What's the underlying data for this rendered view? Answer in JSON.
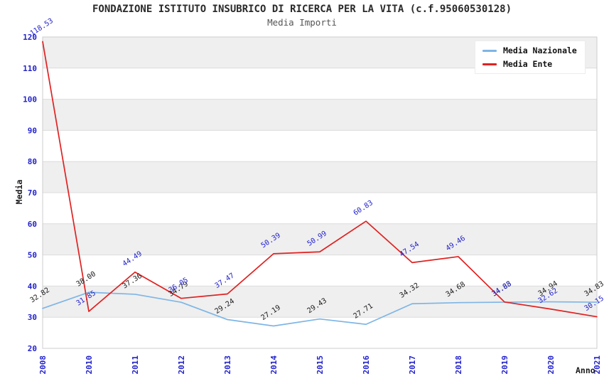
{
  "header": {
    "title": "FONDAZIONE ISTITUTO INSUBRICO DI RICERCA PER LA VITA (c.f.95060530128)",
    "subtitle": "Media Importi"
  },
  "legend": {
    "items": [
      {
        "label": "Media Nazionale",
        "color": "#7eb5e5"
      },
      {
        "label": "Media Ente",
        "color": "#e02121"
      }
    ]
  },
  "chart_data": {
    "type": "line",
    "title": "FONDAZIONE ISTITUTO INSUBRICO DI RICERCA PER LA VITA (c.f.95060530128)",
    "subtitle": "Media Importi",
    "xlabel": "Anno",
    "ylabel": "Media",
    "categories": [
      "2008",
      "2010",
      "2011",
      "2012",
      "2013",
      "2014",
      "2015",
      "2016",
      "2017",
      "2018",
      "2019",
      "2020",
      "2021"
    ],
    "series": [
      {
        "name": "Media Nazionale",
        "color": "#7eb5e5",
        "label_color": "#1a1a1a",
        "values": [
          32.82,
          38.0,
          37.36,
          34.79,
          29.24,
          27.19,
          29.43,
          27.71,
          34.32,
          34.68,
          34.83,
          34.94,
          34.83
        ]
      },
      {
        "name": "Media Ente",
        "color": "#e02121",
        "label_color": "#2222cc",
        "values": [
          118.53,
          31.85,
          44.49,
          36.05,
          37.47,
          50.39,
          50.99,
          60.83,
          47.54,
          49.46,
          34.88,
          32.62,
          30.15
        ]
      }
    ],
    "ylim": [
      20,
      120
    ],
    "ytick_step": 10,
    "yticks": [
      20,
      30,
      40,
      50,
      60,
      70,
      80,
      90,
      100,
      110,
      120
    ],
    "grid": "horizontal",
    "band_fill": "#efefef",
    "gridline_color": "#dcdcdc",
    "frame_color": "#cccccc",
    "axis_tick_color": "#2222cc",
    "legend_position": "top-right",
    "x_tick_rotation": 90,
    "point_label_rotation": -33
  }
}
